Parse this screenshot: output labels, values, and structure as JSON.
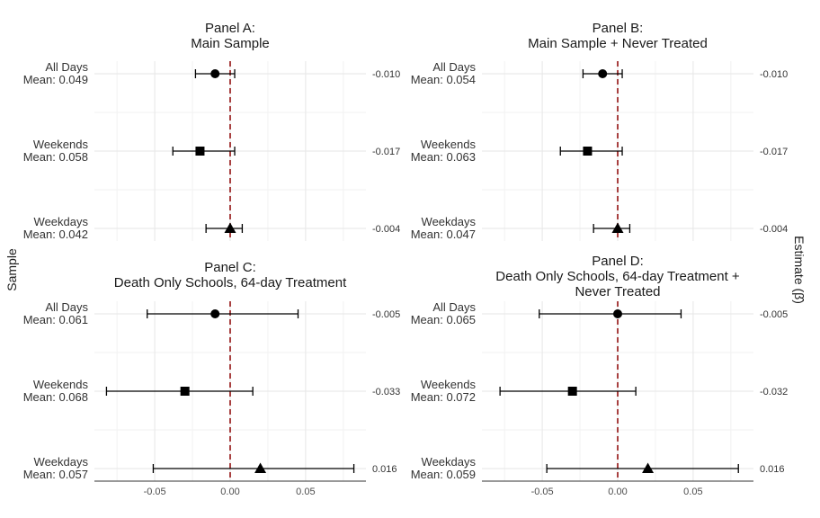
{
  "chart_data": {
    "type": "scatter",
    "subtype": "forest-plot",
    "ylabel": "Sample",
    "y2label": "Estimate (β̂)",
    "xlim": [
      -0.09,
      0.09
    ],
    "xticks": [
      -0.05,
      0.0,
      0.05
    ],
    "xtick_labels": [
      "-0.05",
      "0.00",
      "0.05"
    ],
    "reference_line": {
      "x": 0,
      "style": "dashed",
      "color": "#8b0000"
    },
    "grid": true,
    "marker_shapes": {
      "All Days": "circle",
      "Weekends": "square",
      "Weekdays": "triangle"
    },
    "panels": [
      {
        "title_line1": "Panel A:",
        "title_line2": "Main Sample",
        "title_line3": "",
        "rows": [
          {
            "name": "All Days",
            "mean_label": "Mean: 0.049",
            "estimate": -0.01,
            "ci": [
              -0.023,
              0.003
            ],
            "estimate_label": "-0.010",
            "shape": "circle"
          },
          {
            "name": "Weekends",
            "mean_label": "Mean: 0.058",
            "estimate": -0.02,
            "ci": [
              -0.038,
              0.003
            ],
            "estimate_label": "-0.017",
            "shape": "square"
          },
          {
            "name": "Weekdays",
            "mean_label": "Mean: 0.042",
            "estimate": 0.0,
            "ci": [
              -0.016,
              0.008
            ],
            "estimate_label": "-0.004",
            "shape": "triangle"
          }
        ]
      },
      {
        "title_line1": "Panel B:",
        "title_line2": "Main Sample + Never Treated",
        "title_line3": "",
        "rows": [
          {
            "name": "All Days",
            "mean_label": "Mean: 0.054",
            "estimate": -0.01,
            "ci": [
              -0.023,
              0.003
            ],
            "estimate_label": "-0.010",
            "shape": "circle"
          },
          {
            "name": "Weekends",
            "mean_label": "Mean: 0.063",
            "estimate": -0.02,
            "ci": [
              -0.038,
              0.003
            ],
            "estimate_label": "-0.017",
            "shape": "square"
          },
          {
            "name": "Weekdays",
            "mean_label": "Mean: 0.047",
            "estimate": 0.0,
            "ci": [
              -0.016,
              0.008
            ],
            "estimate_label": "-0.004",
            "shape": "triangle"
          }
        ]
      },
      {
        "title_line1": "Panel C:",
        "title_line2": "Death Only Schools, 64-day Treatment",
        "title_line3": "",
        "rows": [
          {
            "name": "All Days",
            "mean_label": "Mean: 0.061",
            "estimate": -0.01,
            "ci": [
              -0.055,
              0.045
            ],
            "estimate_label": "-0.005",
            "shape": "circle"
          },
          {
            "name": "Weekends",
            "mean_label": "Mean: 0.068",
            "estimate": -0.03,
            "ci": [
              -0.082,
              0.015
            ],
            "estimate_label": "-0.033",
            "shape": "square"
          },
          {
            "name": "Weekdays",
            "mean_label": "Mean: 0.057",
            "estimate": 0.02,
            "ci": [
              -0.051,
              0.082
            ],
            "estimate_label": "0.016",
            "shape": "triangle"
          }
        ]
      },
      {
        "title_line1": "Panel D:",
        "title_line2": "Death Only Schools, 64-day Treatment +",
        "title_line3": "Never Treated",
        "rows": [
          {
            "name": "All Days",
            "mean_label": "Mean: 0.065",
            "estimate": 0.0,
            "ci": [
              -0.052,
              0.042
            ],
            "estimate_label": "-0.005",
            "shape": "circle"
          },
          {
            "name": "Weekends",
            "mean_label": "Mean: 0.072",
            "estimate": -0.03,
            "ci": [
              -0.078,
              0.012
            ],
            "estimate_label": "-0.032",
            "shape": "square"
          },
          {
            "name": "Weekdays",
            "mean_label": "Mean: 0.059",
            "estimate": 0.02,
            "ci": [
              -0.047,
              0.08
            ],
            "estimate_label": "0.016",
            "shape": "triangle"
          }
        ]
      }
    ]
  },
  "colors": {
    "background": "#ffffff",
    "marker": "#000000",
    "reference_line": "#8b0000",
    "grid_major": "#e6e6e6",
    "grid_minor": "#f2f2f2",
    "axis_line": "#333333"
  }
}
